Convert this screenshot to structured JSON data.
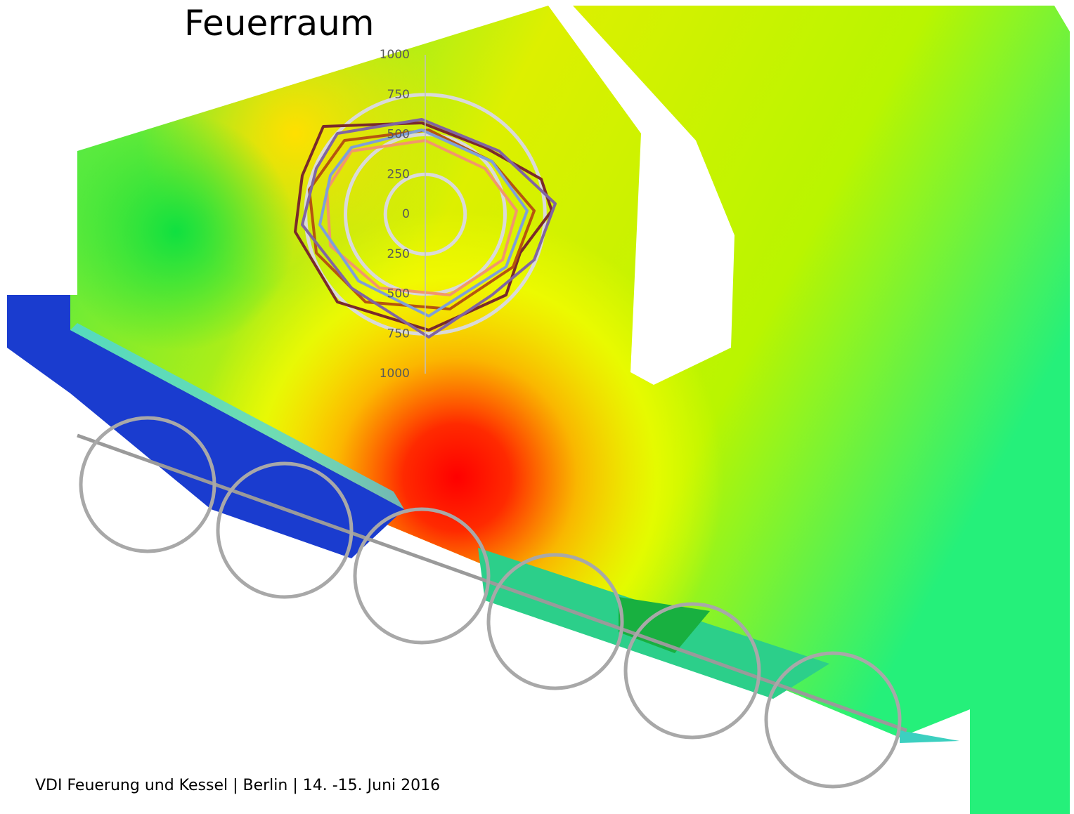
{
  "header": {
    "title": "Feuerraum"
  },
  "chart_data": {
    "type": "polar",
    "rlim": [
      0,
      1000
    ],
    "rticks": [
      0,
      250,
      500,
      750,
      1000
    ],
    "grid": true,
    "grid_color": "#d9d9d9",
    "axis_color": "#bfbfbf",
    "tick_color": "#595959"
  },
  "footer": {
    "text": "VDI Feuerung und Kessel | Berlin  | 14. -15. Juni 2016"
  }
}
